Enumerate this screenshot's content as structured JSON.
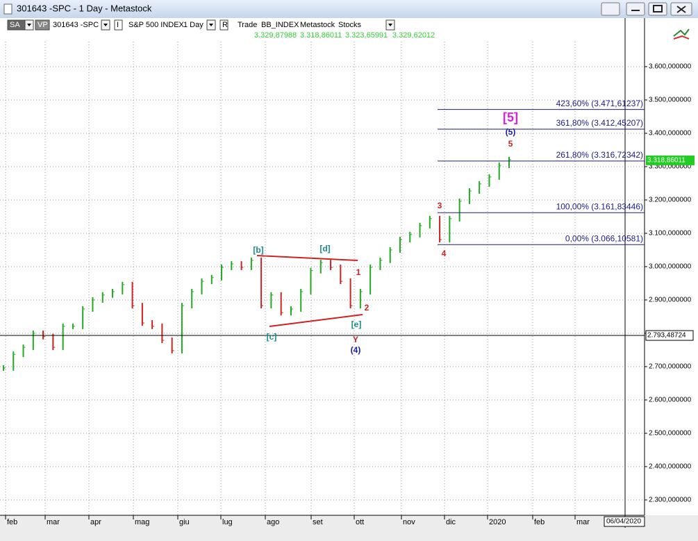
{
  "window": {
    "title": "301643 -SPC - 1 Day - Metastock"
  },
  "toolbar": {
    "items": [
      "SA",
      "VP",
      "301643 -SPC",
      "I",
      "S&P 500 INDEX",
      "1 Day",
      "R",
      "Trade",
      "BB_INDEX",
      "Metastock",
      "Stocks"
    ],
    "quote": [
      "3.329,87988",
      "3.318,86011",
      "3.323,65991",
      "3.329,62012"
    ]
  },
  "chart_data": {
    "type": "bar",
    "x_labels": [
      "feb",
      "mar",
      "apr",
      "mag",
      "giu",
      "lug",
      "ago",
      "set",
      "ott",
      "nov",
      "dic",
      "2020",
      "feb",
      "mar"
    ],
    "values": [
      2696,
      2737,
      2758,
      2800,
      2790,
      2758,
      2821,
      2821,
      2873,
      2900,
      2915,
      2925,
      2946,
      2883,
      2831,
      2821,
      2779,
      2748,
      2883,
      2925,
      2956,
      2967,
      2998,
      3008,
      2998,
      3019,
      2883,
      2915,
      2862,
      2873,
      2925,
      2988,
      3012,
      2998,
      2956,
      2883,
      2925,
      2998,
      3019,
      3050,
      3081,
      3096,
      3123,
      3144,
      3081,
      3144,
      3196,
      3227,
      3248,
      3269,
      3304,
      3321
    ],
    "up_color": "#22aa22",
    "down_color": "#cc2222",
    "ylim": [
      2254,
      3702
    ],
    "yticks": [
      {
        "value": 2300,
        "label": "2.300,000000"
      },
      {
        "value": 2400,
        "label": "2.400,000000"
      },
      {
        "value": 2500,
        "label": "2.500,000000"
      },
      {
        "value": 2600,
        "label": "2.600,000000"
      },
      {
        "value": 2700,
        "label": "2.700,000000"
      },
      {
        "value": 2800,
        "label": "2.800,000000"
      },
      {
        "value": 2900,
        "label": "2.900,000000"
      },
      {
        "value": 3000,
        "label": "3.000,000000"
      },
      {
        "value": 3100,
        "label": "3.100,000000"
      },
      {
        "value": 3200,
        "label": "3.200,000000"
      },
      {
        "value": 3300,
        "label": "3.300,000000"
      },
      {
        "value": 3400,
        "label": "3.400,000000"
      },
      {
        "value": 3500,
        "label": "3.500,000000"
      },
      {
        "value": 3600,
        "label": "3.600,000000"
      }
    ],
    "grid": true,
    "last_price": {
      "value": 3318.86011,
      "label": "3.318,86011"
    },
    "crosshair": {
      "value": 2793.48724,
      "label": "2.793,48724"
    },
    "date_label": "06/04/2020",
    "fib_levels": [
      {
        "value": 3471.61237,
        "label": "423,60% (3.471,61237)"
      },
      {
        "value": 3412.45207,
        "label": "361,80% (3.412,45207)"
      },
      {
        "value": 3316.72342,
        "label": "261,80% (3.316,72342)"
      },
      {
        "value": 3161.83446,
        "label": "100,00% (3.161,83446)"
      },
      {
        "value": 3066.10581,
        "label": "0,00% (3.066,10581)"
      }
    ],
    "annotations": [
      "[b]",
      "[d]",
      "[c]",
      "[e]",
      "1",
      "2",
      "Y",
      "(4)",
      "3",
      "4",
      "5",
      "(5)",
      "[5]"
    ]
  }
}
